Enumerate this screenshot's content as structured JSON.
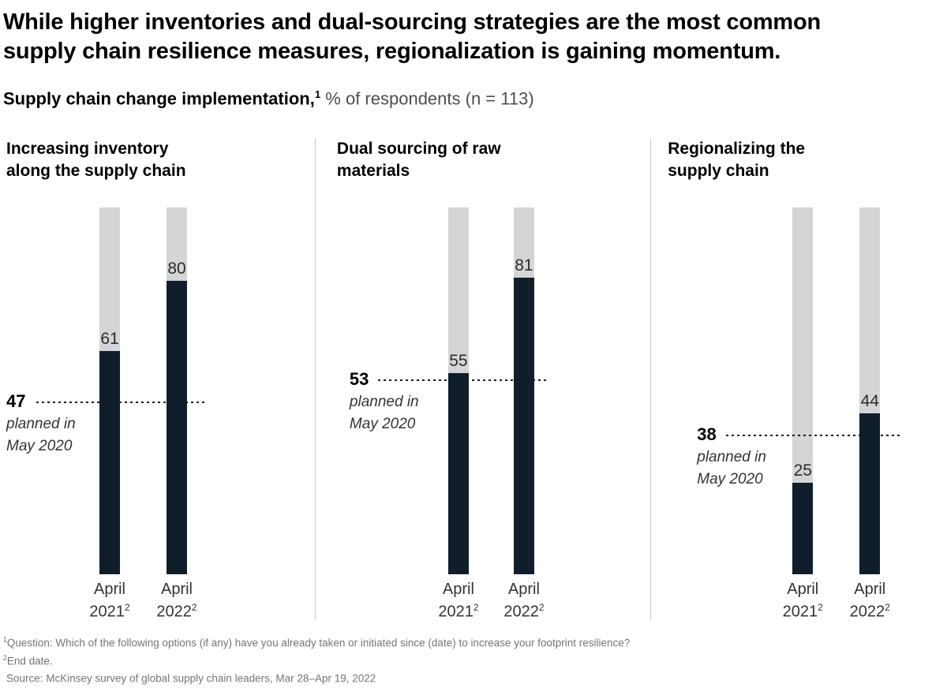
{
  "header": {
    "title": "While higher inventories and dual-sourcing strategies are the most common supply chain resilience measures, regionalization is gaining momentum.",
    "subtitle_bold": "Supply chain change implementation,",
    "subtitle_sup": "1",
    "subtitle_rest": " % of respondents (n = 113)"
  },
  "chart_data": {
    "type": "bar",
    "title": "Supply chain change implementation, % of respondents (n = 113)",
    "unit": "% of respondents",
    "n_respondents": 113,
    "ylim": [
      0,
      100
    ],
    "grid": false,
    "legend": "none",
    "categories": [
      {
        "line1": "April",
        "line2": "2021",
        "sup": "2"
      },
      {
        "line1": "April",
        "line2": "2022",
        "sup": "2"
      }
    ],
    "panels": [
      {
        "heading_line1": "Increasing inventory",
        "heading_line2": "along the supply chain",
        "values": [
          61,
          80
        ],
        "planned": {
          "value": 47,
          "note_line1": "planned in",
          "note_line2": "May 2020"
        }
      },
      {
        "heading_line1": "Dual sourcing of raw",
        "heading_line2": "materials",
        "values": [
          55,
          81
        ],
        "planned": {
          "value": 53,
          "note_line1": "planned in",
          "note_line2": "May 2020"
        }
      },
      {
        "heading_line1": "Regionalizing the",
        "heading_line2": "supply chain",
        "values": [
          25,
          44
        ],
        "planned": {
          "value": 38,
          "note_line1": "planned in",
          "note_line2": "May 2020"
        }
      }
    ]
  },
  "colors": {
    "bar_fill": "#101e2c",
    "bar_track": "#d3d5d6",
    "divider": "#c9c9c9",
    "dashed_line": "#1a1a1a",
    "footnote_text": "#757575"
  },
  "footnotes": [
    {
      "sup": "1",
      "text": "Question: Which of the following options (if any) have you already taken or initiated since (date) to increase your footprint resilience?"
    },
    {
      "sup": "2",
      "text": "End date."
    },
    {
      "sup": "",
      "text": "Source: McKinsey survey of global supply chain leaders, Mar 28–Apr 19, 2022"
    }
  ]
}
